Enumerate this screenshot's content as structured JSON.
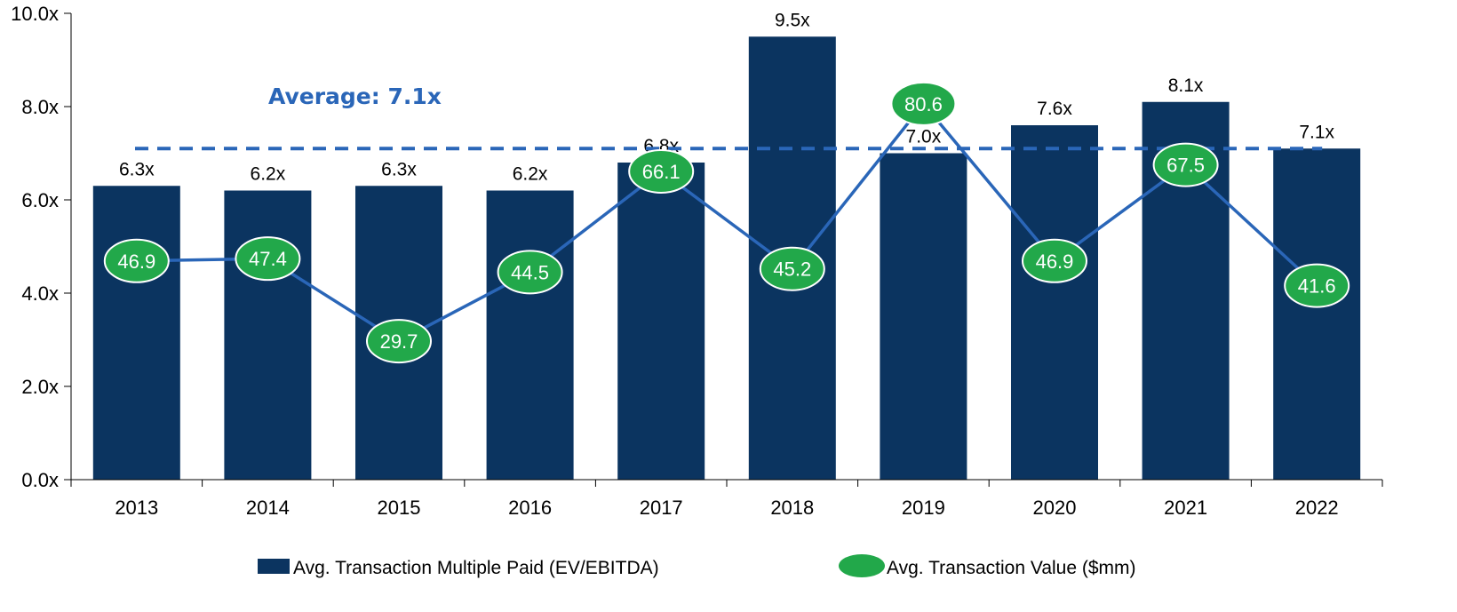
{
  "chart_data": {
    "type": "bar",
    "categories": [
      "2013",
      "2014",
      "2015",
      "2016",
      "2017",
      "2018",
      "2019",
      "2020",
      "2021",
      "2022"
    ],
    "series": [
      {
        "name": "Avg. Transaction Multiple Paid (EV/EBITDA)",
        "type": "bar",
        "axis": "left",
        "values": [
          6.3,
          6.2,
          6.3,
          6.2,
          6.8,
          9.5,
          7.0,
          7.6,
          8.1,
          7.1
        ],
        "labels": [
          "6.3x",
          "6.2x",
          "6.3x",
          "6.2x",
          "6.8x",
          "9.5x",
          "7.0x",
          "7.6x",
          "8.1x",
          "7.1x"
        ],
        "color": "#0b3460"
      },
      {
        "name": "Avg. Transaction Value ($mm)",
        "type": "line",
        "axis": "secondary (unlabeled)",
        "values": [
          46.9,
          47.4,
          29.7,
          44.5,
          66.1,
          45.2,
          80.6,
          46.9,
          67.5,
          41.6
        ],
        "labels": [
          "46.9",
          "47.4",
          "29.7",
          "44.5",
          "66.1",
          "45.2",
          "80.6",
          "46.9",
          "67.5",
          "41.6"
        ],
        "line_color": "#2a66b8",
        "marker_color": "#22a84a"
      }
    ],
    "average_line": {
      "label": "Average: 7.1x",
      "value": 7.1,
      "color": "#2a66b8",
      "style": "dashed"
    },
    "y_axis": {
      "ticks": [
        0,
        2,
        4,
        6,
        8,
        10
      ],
      "tick_labels": [
        "0.0x",
        "2.0x",
        "4.0x",
        "6.0x",
        "8.0x",
        "10.0x"
      ],
      "ylim": [
        0,
        10
      ]
    },
    "secondary_y": {
      "ylim": [
        0,
        100
      ],
      "visible": false
    },
    "legend": {
      "placement": "bottom"
    },
    "grid": false
  }
}
